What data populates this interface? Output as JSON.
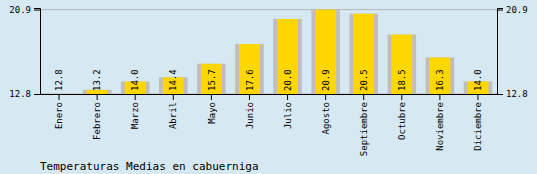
{
  "chart_data": {
    "type": "bar",
    "title": "Temperaturas Medias en cabuerniga",
    "categories": [
      "Enero",
      "Febrero",
      "Marzo",
      "Abril",
      "Mayo",
      "Junio",
      "Julio",
      "Agosto",
      "Septiembre",
      "Octubre",
      "Noviembre",
      "Diciembre"
    ],
    "values": [
      12.8,
      13.2,
      14.0,
      14.4,
      15.7,
      17.6,
      20.0,
      20.9,
      20.5,
      18.5,
      16.3,
      14.0
    ],
    "value_labels": [
      "12.8",
      "13.2",
      "14.0",
      "14.4",
      "15.7",
      "17.6",
      "20.0",
      "20.9",
      "20.5",
      "18.5",
      "16.3",
      "14.0"
    ],
    "color": "#FFD700",
    "ylim": [
      12.8,
      21.05
    ],
    "yticks": [
      12.8,
      20.9
    ],
    "y2lim": [
      12.8,
      21.05
    ],
    "y2ticks": [
      12.8,
      20.9
    ],
    "grid": true,
    "data_labels": true
  }
}
